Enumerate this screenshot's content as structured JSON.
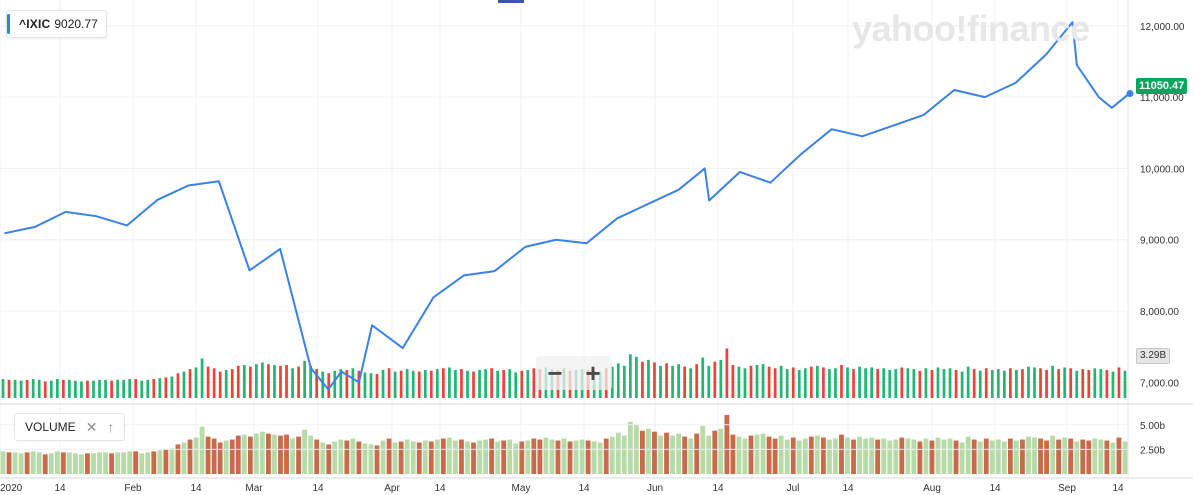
{
  "legend": {
    "symbol": "^IXIC",
    "value": "9020.77"
  },
  "watermark": "yahoo!finance",
  "last_price_label": "11050.47",
  "volume_tag_label": "3.29B",
  "volume_panel": {
    "label": "VOLUME",
    "close_icon": "close-icon",
    "collapse_icon": "arrow-up-icon"
  },
  "zoom": {
    "minus_label": "−",
    "plus_label": "+"
  },
  "colors": {
    "line": "#3b82e6",
    "up": "#22b573",
    "down": "#e8443a",
    "up_light": "#b7dba6",
    "down_light": "#c96a4a",
    "last_price_bg": "#0aa55c"
  },
  "chart_data": [
    {
      "type": "line",
      "title": "",
      "series": [
        {
          "name": "^IXIC",
          "x": [
            "Jan 02",
            "Jan 09",
            "Jan 16",
            "Jan 23",
            "Jan 30",
            "Feb 06",
            "Feb 13",
            "Feb 20",
            "Feb 27",
            "Mar 05",
            "Mar 12",
            "Mar 16",
            "Mar 19",
            "Mar 23",
            "Mar 26",
            "Apr 02",
            "Apr 09",
            "Apr 16",
            "Apr 23",
            "Apr 30",
            "May 07",
            "May 14",
            "May 21",
            "May 28",
            "Jun 04",
            "Jun 10",
            "Jun 11",
            "Jun 18",
            "Jun 25",
            "Jul 02",
            "Jul 09",
            "Jul 16",
            "Jul 23",
            "Jul 30",
            "Aug 06",
            "Aug 13",
            "Aug 20",
            "Aug 27",
            "Sep 02",
            "Sep 03",
            "Sep 08",
            "Sep 11",
            "Sep 15"
          ],
          "y": [
            9090,
            9180,
            9390,
            9330,
            9200,
            9560,
            9760,
            9820,
            8570,
            8870,
            7200,
            6900,
            7150,
            7000,
            7800,
            7480,
            8190,
            8500,
            8560,
            8900,
            9000,
            8950,
            9300,
            9500,
            9700,
            10000,
            9550,
            9950,
            9800,
            10200,
            10550,
            10450,
            10600,
            10750,
            11100,
            11000,
            11200,
            11600,
            12050,
            11450,
            11000,
            10850,
            11050
          ]
        }
      ],
      "xlabel": "",
      "ylabel": "",
      "x_tick_labels": [
        "2020",
        "14",
        "Feb",
        "14",
        "Mar",
        "14",
        "Apr",
        "14",
        "May",
        "14",
        "Jun",
        "14",
        "Jul",
        "14",
        "Aug",
        "14",
        "Sep",
        "14"
      ],
      "y_tick_labels": [
        "7,000.00",
        "8,000.00",
        "9,000.00",
        "10,000.00",
        "11,000.00",
        "12,000.00"
      ],
      "ylim": [
        6780,
        12250
      ],
      "grid": true,
      "legend": "top-left"
    },
    {
      "type": "bar",
      "title": "",
      "series": [
        {
          "name": "VOLUME",
          "unit": "B",
          "values": [
            2.3,
            2.2,
            2.2,
            2.1,
            2.2,
            2.3,
            2.2,
            2.0,
            2.1,
            2.3,
            2.2,
            2.2,
            2.1,
            2.0,
            2.1,
            2.1,
            2.2,
            2.2,
            2.1,
            2.2,
            2.2,
            2.3,
            2.3,
            2.1,
            2.2,
            2.3,
            2.4,
            2.5,
            2.6,
            3.0,
            3.2,
            3.5,
            3.7,
            4.8,
            3.8,
            3.6,
            3.2,
            3.4,
            3.5,
            3.9,
            4.0,
            3.8,
            4.1,
            4.3,
            4.1,
            4.0,
            3.9,
            4.0,
            3.6,
            3.8,
            4.5,
            3.9,
            3.5,
            3.2,
            3.0,
            3.3,
            3.5,
            3.4,
            3.6,
            3.3,
            3.1,
            3.0,
            2.9,
            3.4,
            3.6,
            3.2,
            3.3,
            3.5,
            3.3,
            3.2,
            3.4,
            3.3,
            3.5,
            3.6,
            3.7,
            3.4,
            3.5,
            3.3,
            3.2,
            3.4,
            3.5,
            3.6,
            3.3,
            3.4,
            3.5,
            3.1,
            3.3,
            3.4,
            3.6,
            3.5,
            3.7,
            3.5,
            3.4,
            3.6,
            3.3,
            3.4,
            3.5,
            3.4,
            3.3,
            3.2,
            3.6,
            3.8,
            4.2,
            3.9,
            5.3,
            5.0,
            4.4,
            4.6,
            4.3,
            3.9,
            4.2,
            3.9,
            4.1,
            3.8,
            3.6,
            4.1,
            4.9,
            3.9,
            4.4,
            4.6,
            6.0,
            4.0,
            3.8,
            3.6,
            3.9,
            4.0,
            4.1,
            3.8,
            3.6,
            3.9,
            3.5,
            3.7,
            3.4,
            3.6,
            3.8,
            3.9,
            3.7,
            3.5,
            3.6,
            4.0,
            3.7,
            3.5,
            3.8,
            3.6,
            3.7,
            3.5,
            3.6,
            3.4,
            3.5,
            3.7,
            3.6,
            3.5,
            3.3,
            3.6,
            3.4,
            3.7,
            3.5,
            3.6,
            3.4,
            3.2,
            3.8,
            3.5,
            3.3,
            3.6,
            3.4,
            3.5,
            3.3,
            3.6,
            3.4,
            3.5,
            3.8,
            3.7,
            3.6,
            3.4,
            3.9,
            3.5,
            3.7,
            3.6,
            3.3,
            3.5,
            3.4,
            3.6,
            3.5,
            3.4,
            3.2,
            3.7,
            3.3
          ],
          "up": [
            1,
            0,
            1,
            1,
            0,
            1,
            1,
            0,
            1,
            1,
            0,
            1,
            1,
            1,
            0,
            1,
            1,
            1,
            0,
            1,
            1,
            1,
            0,
            1,
            1,
            0,
            1,
            0,
            1,
            0,
            1,
            0,
            1,
            1,
            0,
            0,
            0,
            1,
            0,
            0,
            1,
            0,
            1,
            1,
            0,
            1,
            0,
            0,
            1,
            0,
            1,
            1,
            0,
            1,
            0,
            1,
            1,
            0,
            1,
            0,
            1,
            1,
            0,
            1,
            0,
            1,
            0,
            1,
            1,
            0,
            1,
            0,
            1,
            0,
            1,
            1,
            0,
            1,
            0,
            1,
            1,
            0,
            1,
            0,
            1,
            1,
            0,
            1,
            0,
            0,
            1,
            1,
            0,
            1,
            0,
            1,
            1,
            0,
            1,
            1,
            0,
            1,
            1,
            1,
            1,
            1,
            0,
            1,
            0,
            1,
            0,
            1,
            1,
            0,
            1,
            0,
            1,
            1,
            0,
            1,
            0,
            0,
            1,
            1,
            0,
            1,
            1,
            0,
            0,
            1,
            1,
            0,
            1,
            1,
            0,
            1,
            0,
            1,
            1,
            0,
            1,
            0,
            1,
            1,
            1,
            0,
            1,
            1,
            1,
            0,
            1,
            1,
            0,
            1,
            0,
            1,
            1,
            1,
            0,
            1,
            1,
            0,
            1,
            0,
            1,
            1,
            1,
            0,
            1,
            0,
            1,
            1,
            0,
            0,
            1,
            0,
            1,
            0,
            1,
            0,
            0,
            1,
            1,
            0,
            1,
            0,
            1
          ]
        }
      ],
      "y_tick_labels": [
        "2.50b",
        "5.00b"
      ],
      "ylim": [
        0,
        6.3
      ]
    }
  ]
}
